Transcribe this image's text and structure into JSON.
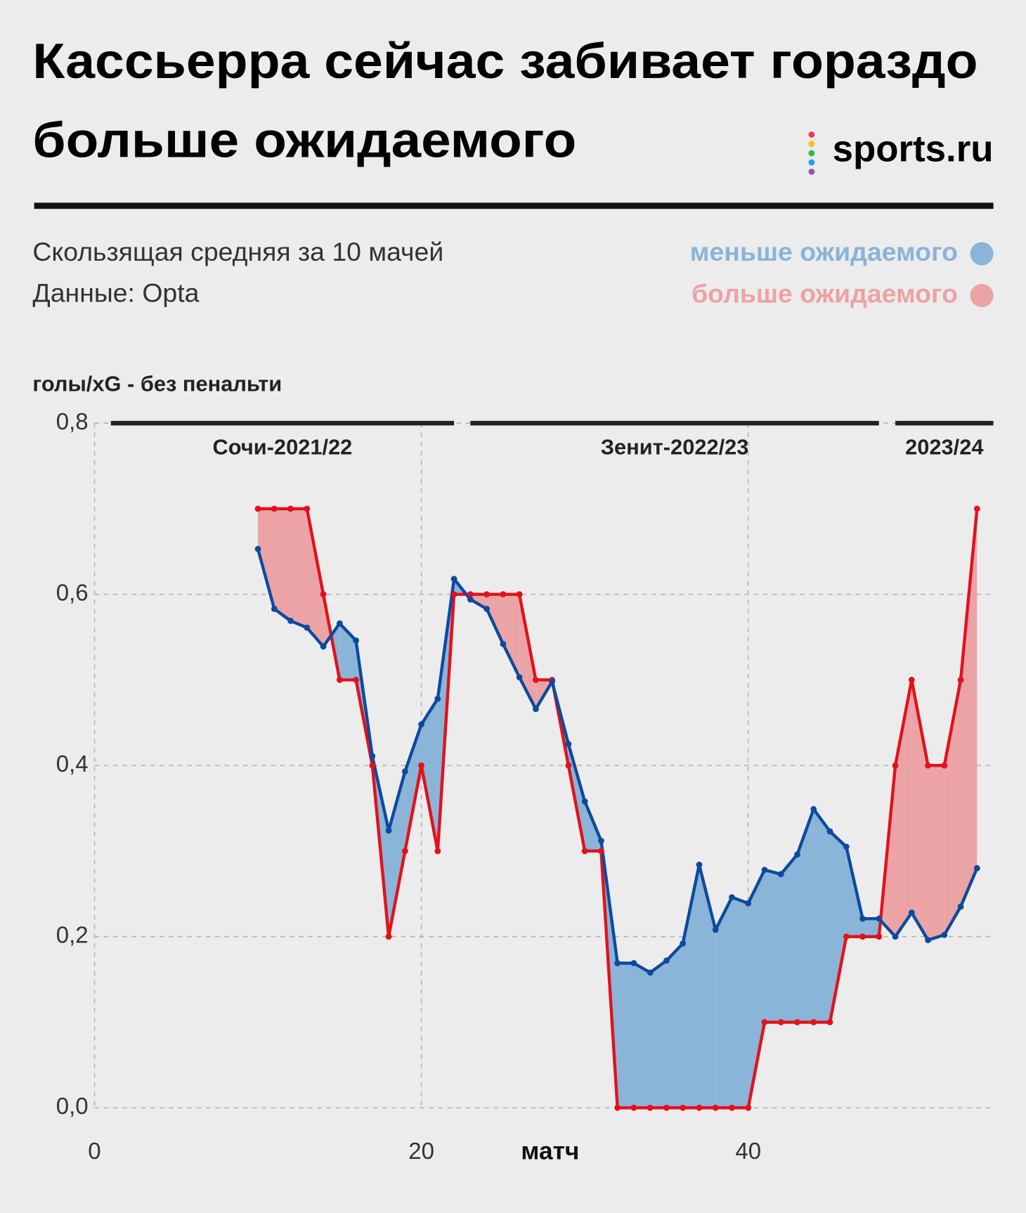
{
  "chart_data": {
    "type": "line",
    "title": [
      "Кассьерра сейчас забивает гораздо",
      "больше ожидаемого"
    ],
    "logo": "sports.ru",
    "subtitle": [
      "Скользящая средняя за 10 мачей",
      "Данные: Opta"
    ],
    "legend": [
      {
        "name": "меньше ожидаемого",
        "color": "#8ab4d8"
      },
      {
        "name": "больше ожидаемого",
        "color": "#eba3a6"
      }
    ],
    "y_label": "голы/xG - без пенальти",
    "x_label": "матч",
    "seasons": [
      {
        "label": "Сочи-2021/22",
        "start": 1,
        "end": 22
      },
      {
        "label": "Зенит-2022/23",
        "start": 23,
        "end": 48
      },
      {
        "label": "2023/24",
        "start": 49,
        "end": 55
      }
    ],
    "x": [
      10,
      11,
      12,
      13,
      14,
      15,
      16,
      17,
      18,
      19,
      20,
      21,
      22,
      23,
      24,
      25,
      26,
      27,
      28,
      29,
      30,
      31,
      32,
      33,
      34,
      35,
      36,
      37,
      38,
      39,
      40,
      41,
      42,
      43,
      44,
      45,
      46,
      47,
      48,
      49,
      50,
      51,
      52,
      53,
      54
    ],
    "series": [
      {
        "color": "#e3111b",
        "values": [
          0.7,
          0.7,
          0.7,
          0.7,
          0.6,
          0.5,
          0.5,
          0.4,
          0.2,
          0.3,
          0.4,
          0.3,
          0.6,
          0.6,
          0.6,
          0.6,
          0.6,
          0.5,
          0.5,
          0.4,
          0.3,
          0.3,
          0.0,
          0.0,
          0.0,
          0.0,
          0.0,
          0.0,
          0.0,
          0.0,
          0.0,
          0.1,
          0.1,
          0.1,
          0.1,
          0.1,
          0.2,
          0.2,
          0.2,
          0.4,
          0.5,
          0.4,
          0.4,
          0.5,
          0.7
        ]
      },
      {
        "color": "#0d4a9e",
        "values": [
          0.653,
          0.583,
          0.569,
          0.561,
          0.539,
          0.566,
          0.546,
          0.411,
          0.324,
          0.393,
          0.448,
          0.478,
          0.618,
          0.594,
          0.583,
          0.542,
          0.503,
          0.466,
          0.498,
          0.425,
          0.358,
          0.312,
          0.169,
          0.169,
          0.158,
          0.172,
          0.192,
          0.284,
          0.208,
          0.246,
          0.239,
          0.278,
          0.273,
          0.296,
          0.349,
          0.323,
          0.305,
          0.221,
          0.221,
          0.2,
          0.228,
          0.196,
          0.202,
          0.235,
          0.28
        ]
      }
    ],
    "xlim": [
      0,
      55
    ],
    "xticks": [
      0,
      20,
      40
    ],
    "ylim": [
      0,
      0.8
    ],
    "yticks": [
      {
        "value": 0,
        "label": "0,0"
      },
      {
        "value": 0.2,
        "label": "0,2"
      },
      {
        "value": 0.4,
        "label": "0,4"
      },
      {
        "value": 0.6,
        "label": "0,6"
      },
      {
        "value": 0.8,
        "label": "0,8"
      }
    ],
    "grid": true
  }
}
